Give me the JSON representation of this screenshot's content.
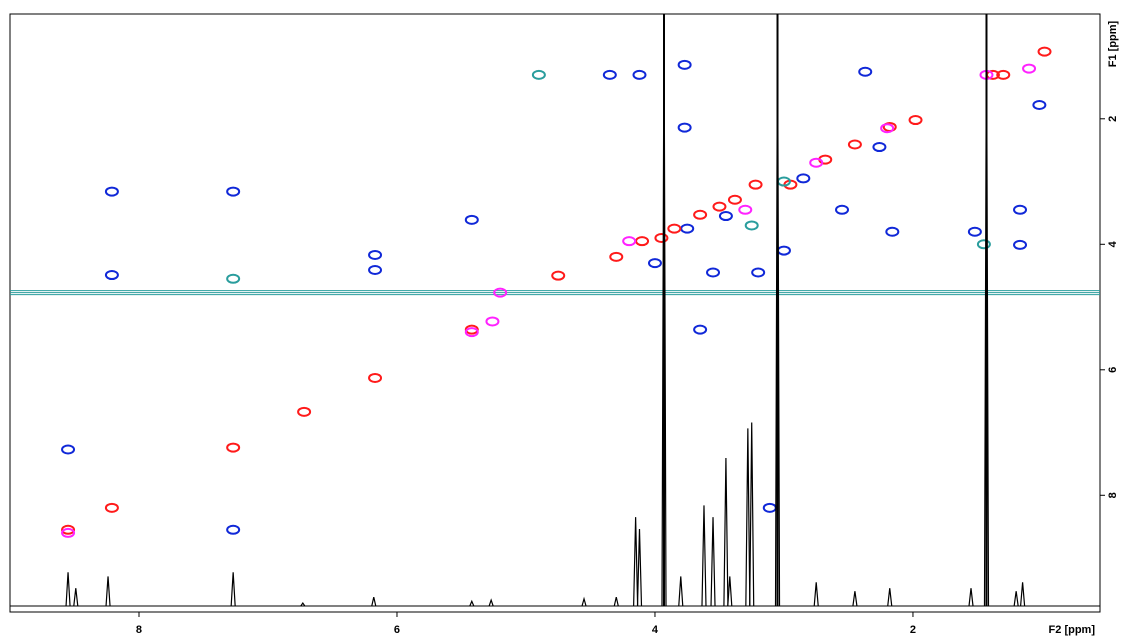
{
  "chart_data": {
    "type": "nmr2d",
    "xlabel": "F2 [ppm]",
    "ylabel": "F1 [ppm]",
    "xlim": [
      9.0,
      0.55
    ],
    "ylim": [
      9.86,
      0.33
    ],
    "xticks": [
      8,
      6,
      4,
      2
    ],
    "yticks": [
      2,
      4,
      6,
      8
    ],
    "series": [
      {
        "color": "#1028d8",
        "x": [
          8.21,
          8.21,
          8.55,
          7.27,
          7.27,
          6.17,
          6.17,
          5.42,
          4.35,
          4.12,
          3.77,
          3.77,
          3.65,
          3.11,
          2.37,
          2.26,
          2.16,
          1.17,
          1.17,
          1.52,
          1.02,
          3.45,
          3.75,
          3.55,
          3.2,
          2.85,
          2.55,
          3.0,
          4.0
        ],
        "values": [
          3.16,
          4.49,
          7.27,
          3.16,
          8.55,
          4.17,
          4.41,
          3.61,
          1.3,
          1.3,
          1.14,
          2.14,
          5.36,
          8.2,
          1.25,
          2.45,
          3.8,
          3.45,
          4.01,
          3.8,
          1.78,
          3.55,
          3.75,
          4.45,
          4.45,
          2.95,
          3.45,
          4.1,
          4.3
        ]
      },
      {
        "color": "#ff1a1a",
        "x": [
          8.55,
          8.21,
          7.27,
          6.72,
          6.17,
          5.42,
          4.75,
          4.1,
          3.95,
          3.65,
          3.38,
          3.22,
          2.95,
          2.68,
          2.45,
          2.18,
          1.98,
          1.38,
          1.3,
          0.98,
          3.85,
          3.5,
          4.3
        ],
        "values": [
          8.55,
          8.2,
          7.24,
          6.67,
          6.13,
          5.36,
          4.5,
          3.95,
          3.9,
          3.53,
          3.29,
          3.05,
          3.05,
          2.65,
          2.41,
          2.13,
          2.02,
          1.3,
          1.3,
          0.93,
          3.75,
          3.4,
          4.2
        ]
      },
      {
        "color": "#ff22ff",
        "x": [
          8.55,
          5.42,
          5.26,
          2.75,
          3.3,
          1.43,
          1.1,
          4.2,
          2.2,
          5.2
        ],
        "values": [
          8.6,
          5.4,
          5.23,
          2.7,
          3.45,
          1.3,
          1.2,
          3.95,
          2.15,
          4.77
        ]
      },
      {
        "color": "#2a9d9d",
        "x": [
          4.9,
          3.25,
          1.45,
          3.0,
          7.27
        ],
        "values": [
          1.3,
          3.7,
          4.0,
          3.0,
          4.55
        ]
      }
    ],
    "ridges": {
      "color": "#000000",
      "x": [
        3.93,
        3.05,
        1.43
      ]
    },
    "t1_noise": {
      "color": "#2a9d9d",
      "values": [
        4.77
      ]
    },
    "spectrum_1d": {
      "color": "#000000",
      "ylim": [
        0,
        100
      ],
      "x": [
        8.55,
        8.49,
        8.24,
        7.27,
        6.73,
        6.18,
        5.42,
        5.27,
        4.55,
        4.3,
        4.15,
        4.12,
        3.93,
        3.8,
        3.62,
        3.55,
        3.45,
        3.42,
        3.28,
        3.25,
        3.05,
        2.75,
        2.45,
        2.18,
        1.55,
        1.43,
        1.2,
        1.15
      ],
      "values": [
        5.7,
        3,
        5,
        5.7,
        0.5,
        1.5,
        0.8,
        1,
        1.2,
        1.5,
        15,
        13,
        100,
        5,
        17,
        15,
        25,
        5,
        30,
        31,
        100,
        4,
        2.5,
        3,
        3,
        100,
        2.5,
        4
      ]
    }
  }
}
